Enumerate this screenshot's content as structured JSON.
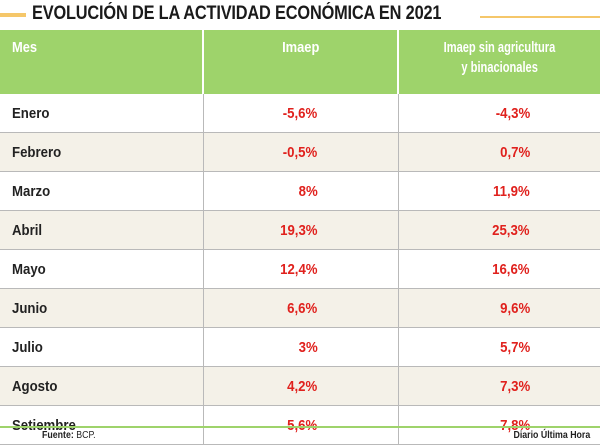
{
  "title": "EVOLUCIÓN DE LA ACTIVIDAD ECONÓMICA EN 2021",
  "headers": {
    "mes": "Mes",
    "imaep": "Imaep",
    "imaep_sin_line1": "Imaep sin agricultura",
    "imaep_sin_line2": "y binacionales"
  },
  "rows": [
    {
      "mes": "Enero",
      "imaep": "-5,6%",
      "imaep_sin": "-4,3%"
    },
    {
      "mes": "Febrero",
      "imaep": "-0,5%",
      "imaep_sin": "0,7%"
    },
    {
      "mes": "Marzo",
      "imaep": "8%",
      "imaep_sin": "11,9%"
    },
    {
      "mes": "Abril",
      "imaep": "19,3%",
      "imaep_sin": "25,3%"
    },
    {
      "mes": "Mayo",
      "imaep": "12,4%",
      "imaep_sin": "16,6%"
    },
    {
      "mes": "Junio",
      "imaep": "6,6%",
      "imaep_sin": "9,6%"
    },
    {
      "mes": "Julio",
      "imaep": "3%",
      "imaep_sin": "5,7%"
    },
    {
      "mes": "Agosto",
      "imaep": "4,2%",
      "imaep_sin": "7,3%"
    },
    {
      "mes": "Setiembre",
      "imaep": "5,6%",
      "imaep_sin": "7,8%"
    }
  ],
  "footer": {
    "fuente_label": "Fuente:",
    "fuente_value": "BCP.",
    "credit": "Diario Última Hora"
  },
  "colors": {
    "header_bg": "#9ed36b",
    "value_red": "#e0211d",
    "accent": "#f5c76a",
    "stripe": "#f4f1e8"
  }
}
